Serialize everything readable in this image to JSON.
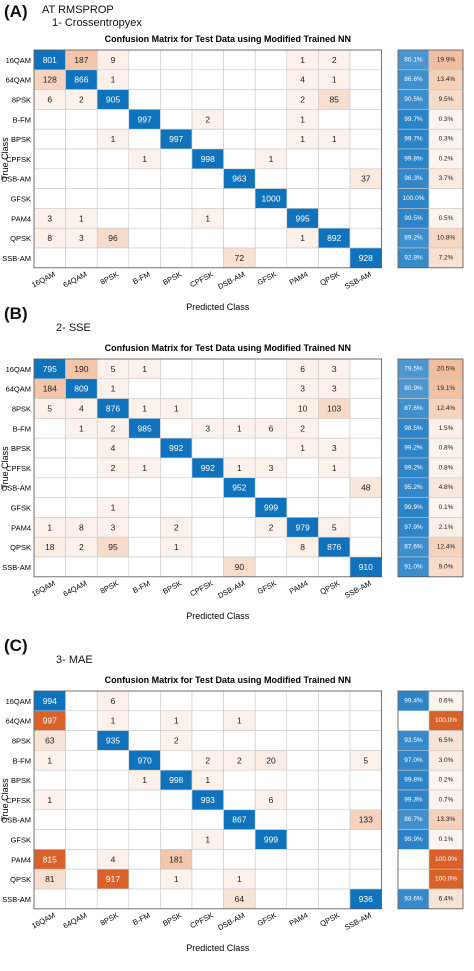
{
  "header": {
    "line1": "AT RMSPROP"
  },
  "panels": [
    {
      "letter": "(A)",
      "subtitle": "1-   Crossentropyex"
    },
    {
      "letter": "(B)",
      "subtitle": "2-   SSE"
    },
    {
      "letter": "(C)",
      "subtitle": "3-   MAE"
    }
  ],
  "chart_data": [
    {
      "type": "heatmap",
      "title": "Confusion Matrix for Test Data using Modified Trained NN",
      "xlabel": "Predicted Class",
      "ylabel": "True Class",
      "classes": [
        "16QAM",
        "64QAM",
        "8PSK",
        "B-FM",
        "BPSK",
        "CPFSK",
        "DSB-AM",
        "GFSK",
        "PAM4",
        "QPSK",
        "SSB-AM"
      ],
      "matrix": [
        [
          801,
          187,
          9,
          0,
          0,
          0,
          0,
          0,
          1,
          2,
          0
        ],
        [
          128,
          866,
          1,
          0,
          0,
          0,
          0,
          0,
          4,
          1,
          0
        ],
        [
          6,
          2,
          905,
          0,
          0,
          0,
          0,
          0,
          2,
          85,
          0
        ],
        [
          0,
          0,
          0,
          997,
          0,
          2,
          0,
          0,
          1,
          0,
          0
        ],
        [
          0,
          0,
          1,
          0,
          997,
          0,
          0,
          0,
          1,
          1,
          0
        ],
        [
          0,
          0,
          0,
          1,
          0,
          998,
          0,
          1,
          0,
          0,
          0
        ],
        [
          0,
          0,
          0,
          0,
          0,
          0,
          963,
          0,
          0,
          0,
          37
        ],
        [
          0,
          0,
          0,
          0,
          0,
          0,
          0,
          1000,
          0,
          0,
          0
        ],
        [
          3,
          1,
          0,
          0,
          0,
          1,
          0,
          0,
          995,
          0,
          0
        ],
        [
          8,
          3,
          96,
          0,
          0,
          0,
          0,
          0,
          1,
          892,
          0
        ],
        [
          0,
          0,
          0,
          0,
          0,
          0,
          72,
          0,
          0,
          0,
          928
        ]
      ],
      "row_summary_correct": [
        "80.1%",
        "86.6%",
        "90.5%",
        "99.7%",
        "99.7%",
        "99.8%",
        "96.3%",
        "100.0%",
        "99.5%",
        "89.2%",
        "92.8%"
      ],
      "row_summary_incorrect": [
        "19.9%",
        "13.4%",
        "9.5%",
        "0.3%",
        "0.3%",
        "0.2%",
        "3.7%",
        "",
        "0.5%",
        "10.8%",
        "7.2%"
      ]
    },
    {
      "type": "heatmap",
      "title": "Confusion Matrix for Test Data using Modified Trained NN",
      "xlabel": "Predicted Class",
      "ylabel": "True Class",
      "classes": [
        "16QAM",
        "64QAM",
        "8PSK",
        "B-FM",
        "BPSK",
        "CPFSK",
        "DSB-AM",
        "GFSK",
        "PAM4",
        "QPSK",
        "SSB-AM"
      ],
      "matrix": [
        [
          795,
          190,
          5,
          1,
          0,
          0,
          0,
          0,
          6,
          3,
          0
        ],
        [
          184,
          809,
          1,
          0,
          0,
          0,
          0,
          0,
          3,
          3,
          0
        ],
        [
          5,
          4,
          876,
          1,
          1,
          0,
          0,
          0,
          10,
          103,
          0
        ],
        [
          0,
          1,
          2,
          985,
          0,
          3,
          1,
          6,
          2,
          0,
          0
        ],
        [
          0,
          0,
          4,
          0,
          992,
          0,
          0,
          0,
          1,
          3,
          0
        ],
        [
          0,
          0,
          2,
          1,
          0,
          992,
          1,
          3,
          0,
          1,
          0
        ],
        [
          0,
          0,
          0,
          0,
          0,
          0,
          952,
          0,
          0,
          0,
          48
        ],
        [
          0,
          0,
          1,
          0,
          0,
          0,
          0,
          999,
          0,
          0,
          0
        ],
        [
          1,
          8,
          3,
          0,
          2,
          0,
          0,
          2,
          979,
          5,
          0
        ],
        [
          18,
          2,
          95,
          0,
          1,
          0,
          0,
          0,
          8,
          876,
          0
        ],
        [
          0,
          0,
          0,
          0,
          0,
          0,
          90,
          0,
          0,
          0,
          910
        ]
      ],
      "row_summary_correct": [
        "79.5%",
        "80.9%",
        "87.6%",
        "98.5%",
        "99.2%",
        "99.2%",
        "95.2%",
        "99.9%",
        "97.9%",
        "87.6%",
        "91.0%"
      ],
      "row_summary_incorrect": [
        "20.5%",
        "19.1%",
        "12.4%",
        "1.5%",
        "0.8%",
        "0.8%",
        "4.8%",
        "0.1%",
        "2.1%",
        "12.4%",
        "9.0%"
      ]
    },
    {
      "type": "heatmap",
      "title": "Confusion Matrix for Test Data using Modified Trained NN",
      "xlabel": "Predicted Class",
      "ylabel": "True Class",
      "classes": [
        "16QAM",
        "64QAM",
        "8PSK",
        "B-FM",
        "BPSK",
        "CPFSK",
        "DSB-AM",
        "GFSK",
        "PAM4",
        "QPSK",
        "SSB-AM"
      ],
      "matrix": [
        [
          994,
          0,
          6,
          0,
          0,
          0,
          0,
          0,
          0,
          0,
          0
        ],
        [
          997,
          0,
          1,
          0,
          1,
          0,
          1,
          0,
          0,
          0,
          0
        ],
        [
          63,
          0,
          935,
          0,
          2,
          0,
          0,
          0,
          0,
          0,
          0
        ],
        [
          1,
          0,
          0,
          970,
          0,
          2,
          2,
          20,
          0,
          0,
          5
        ],
        [
          0,
          0,
          0,
          1,
          998,
          1,
          0,
          0,
          0,
          0,
          0
        ],
        [
          1,
          0,
          0,
          0,
          0,
          993,
          0,
          6,
          0,
          0,
          0
        ],
        [
          0,
          0,
          0,
          0,
          0,
          0,
          867,
          0,
          0,
          0,
          133
        ],
        [
          0,
          0,
          0,
          0,
          0,
          1,
          0,
          999,
          0,
          0,
          0
        ],
        [
          815,
          0,
          4,
          0,
          181,
          0,
          0,
          0,
          0,
          0,
          0
        ],
        [
          81,
          0,
          917,
          0,
          1,
          0,
          1,
          0,
          0,
          0,
          0
        ],
        [
          0,
          0,
          0,
          0,
          0,
          0,
          64,
          0,
          0,
          0,
          936
        ]
      ],
      "row_summary_correct": [
        "99.4%",
        "",
        "93.5%",
        "97.0%",
        "99.8%",
        "99.3%",
        "86.7%",
        "99.9%",
        "",
        "",
        "93.6%"
      ],
      "row_summary_incorrect": [
        "0.6%",
        "100.0%",
        "6.5%",
        "3.0%",
        "0.2%",
        "0.7%",
        "13.3%",
        "0.1%",
        "100.0%",
        "100.0%",
        "6.4%"
      ]
    }
  ],
  "colors": {
    "correct_blue": "#0f72bd",
    "light_blue": "#2c84c8",
    "error_orange": "#d9622b",
    "grid": "#c8c8c8"
  }
}
